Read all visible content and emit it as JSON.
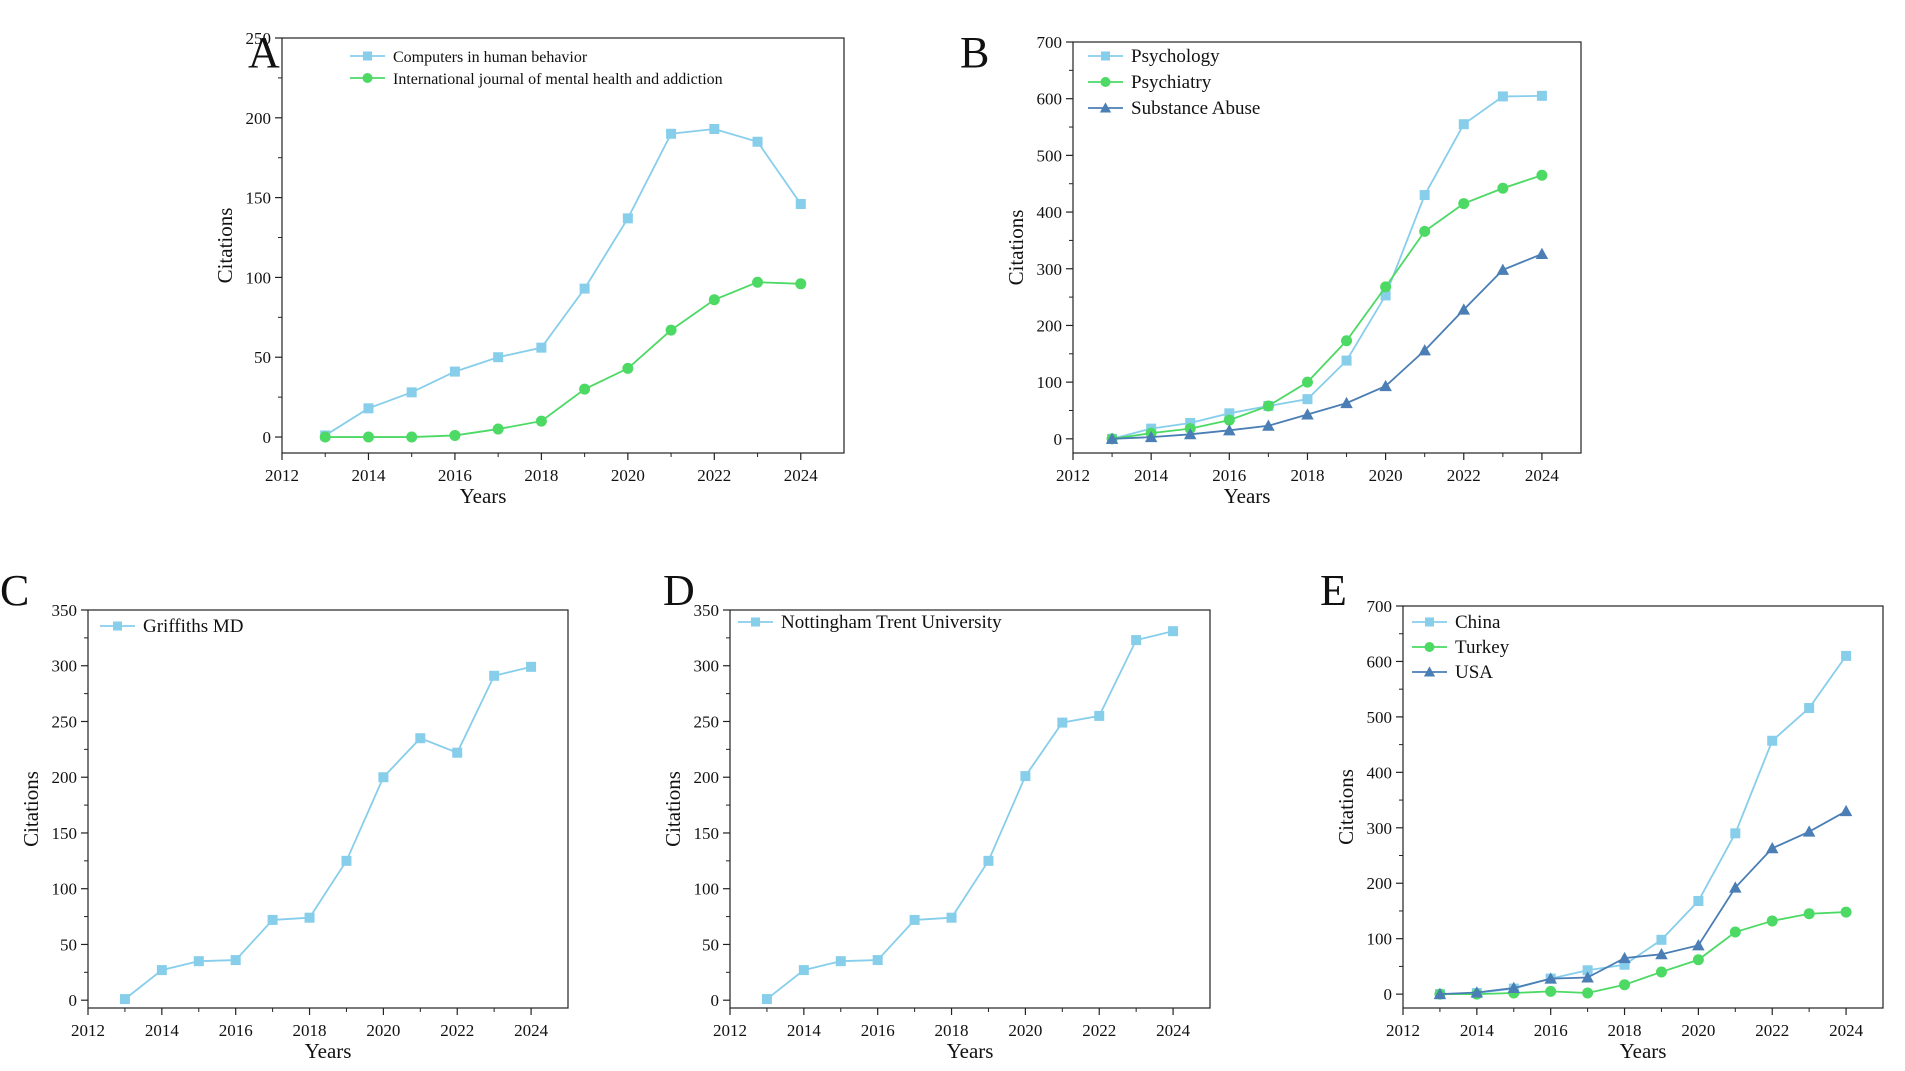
{
  "colors": {
    "light_blue": "#87ceeb",
    "green": "#4cd964",
    "dark_blue": "#4a7eb4",
    "axis": "#222222"
  },
  "chart_data": [
    {
      "panel": "A",
      "type": "line",
      "xlabel": "Years",
      "ylabel": "Citations",
      "xlim": [
        2012,
        2025
      ],
      "ylim": [
        -10,
        250
      ],
      "xticks": [
        2012,
        2014,
        2016,
        2018,
        2020,
        2022,
        2024
      ],
      "yticks": [
        0,
        50,
        100,
        150,
        200,
        250
      ],
      "legend_position": "top-left",
      "x": [
        2013,
        2014,
        2015,
        2016,
        2017,
        2018,
        2019,
        2020,
        2021,
        2022,
        2023,
        2024
      ],
      "series": [
        {
          "name": "Computers in human behavior",
          "marker": "square",
          "color": "#87ceeb",
          "values": [
            1,
            18,
            28,
            41,
            50,
            56,
            93,
            137,
            190,
            193,
            185,
            146
          ]
        },
        {
          "name": "International journal of mental health and addiction",
          "marker": "circle",
          "color": "#4cd964",
          "values": [
            0,
            0,
            0,
            1,
            5,
            10,
            30,
            43,
            67,
            86,
            97,
            96
          ]
        }
      ]
    },
    {
      "panel": "B",
      "type": "line",
      "xlabel": "Years",
      "ylabel": "Citations",
      "xlim": [
        2012,
        2025
      ],
      "ylim": [
        -25,
        700
      ],
      "xticks": [
        2012,
        2014,
        2016,
        2018,
        2020,
        2022,
        2024
      ],
      "yticks": [
        0,
        100,
        200,
        300,
        400,
        500,
        600,
        700
      ],
      "legend_position": "top-left",
      "x": [
        2013,
        2014,
        2015,
        2016,
        2017,
        2018,
        2019,
        2020,
        2021,
        2022,
        2023,
        2024
      ],
      "series": [
        {
          "name": "Psychology",
          "marker": "square",
          "color": "#87ceeb",
          "values": [
            0,
            18,
            28,
            45,
            58,
            70,
            138,
            253,
            430,
            555,
            604,
            605
          ]
        },
        {
          "name": "Psychiatry",
          "marker": "circle",
          "color": "#4cd964",
          "values": [
            0,
            10,
            18,
            33,
            58,
            100,
            173,
            268,
            366,
            415,
            442,
            465
          ]
        },
        {
          "name": "Substance Abuse",
          "marker": "triangle",
          "color": "#4a7eb4",
          "values": [
            0,
            3,
            8,
            15,
            23,
            43,
            63,
            93,
            156,
            228,
            298,
            326
          ]
        }
      ]
    },
    {
      "panel": "C",
      "type": "line",
      "xlabel": "Years",
      "ylabel": "Citations",
      "xlim": [
        2012,
        2025
      ],
      "ylim": [
        -7,
        350
      ],
      "xticks": [
        2012,
        2014,
        2016,
        2018,
        2020,
        2022,
        2024
      ],
      "yticks": [
        0,
        50,
        100,
        150,
        200,
        250,
        300,
        350
      ],
      "legend_position": "top-left",
      "x": [
        2013,
        2014,
        2015,
        2016,
        2017,
        2018,
        2019,
        2020,
        2021,
        2022,
        2023,
        2024
      ],
      "series": [
        {
          "name": "Griffiths MD",
          "marker": "square",
          "color": "#87ceeb",
          "values": [
            1,
            27,
            35,
            36,
            72,
            74,
            125,
            200,
            235,
            222,
            291,
            299
          ]
        }
      ]
    },
    {
      "panel": "D",
      "type": "line",
      "xlabel": "Years",
      "ylabel": "Citations",
      "xlim": [
        2012,
        2025
      ],
      "ylim": [
        -7,
        350
      ],
      "xticks": [
        2012,
        2014,
        2016,
        2018,
        2020,
        2022,
        2024
      ],
      "yticks": [
        0,
        50,
        100,
        150,
        200,
        250,
        300,
        350
      ],
      "legend_position": "top-left",
      "x": [
        2013,
        2014,
        2015,
        2016,
        2017,
        2018,
        2019,
        2020,
        2021,
        2022,
        2023,
        2024
      ],
      "series": [
        {
          "name": "Nottingham Trent University",
          "marker": "square",
          "color": "#87ceeb",
          "values": [
            1,
            27,
            35,
            36,
            72,
            74,
            125,
            201,
            249,
            255,
            323,
            331
          ]
        }
      ]
    },
    {
      "panel": "E",
      "type": "line",
      "xlabel": "Years",
      "ylabel": "Citations",
      "xlim": [
        2012,
        2025
      ],
      "ylim": [
        -25,
        700
      ],
      "xticks": [
        2012,
        2014,
        2016,
        2018,
        2020,
        2022,
        2024
      ],
      "yticks": [
        0,
        100,
        200,
        300,
        400,
        500,
        600,
        700
      ],
      "legend_position": "top-left",
      "x": [
        2013,
        2014,
        2015,
        2016,
        2017,
        2018,
        2019,
        2020,
        2021,
        2022,
        2023,
        2024
      ],
      "series": [
        {
          "name": "China",
          "marker": "square",
          "color": "#87ceeb",
          "values": [
            0,
            2,
            10,
            28,
            43,
            53,
            98,
            168,
            290,
            457,
            516,
            610
          ]
        },
        {
          "name": "Turkey",
          "marker": "circle",
          "color": "#4cd964",
          "values": [
            0,
            0,
            2,
            5,
            2,
            17,
            40,
            62,
            112,
            132,
            145,
            148
          ]
        },
        {
          "name": "USA",
          "marker": "triangle",
          "color": "#4a7eb4",
          "values": [
            0,
            3,
            11,
            28,
            30,
            65,
            72,
            88,
            192,
            263,
            293,
            330
          ]
        }
      ]
    }
  ]
}
